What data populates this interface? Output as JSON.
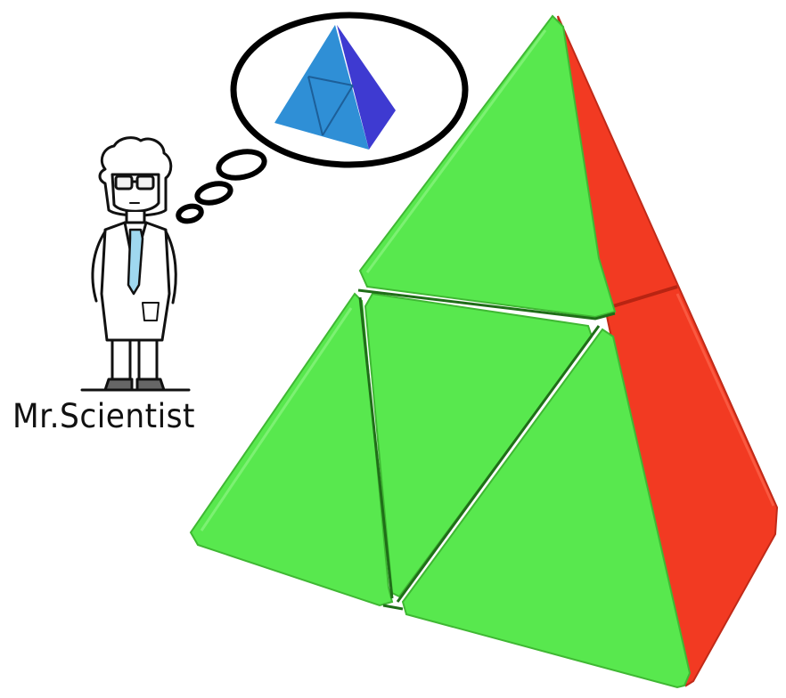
{
  "caption": "Mr.Scientist",
  "icons": {
    "scientist": "scientist-character-icon",
    "thought_bubble": "thought-bubble-icon",
    "small_pyramid": "blue-pyraminx-icon",
    "big_pyramid": "pyraminx-puzzle-icon"
  },
  "colors": {
    "pyramid_green": "#58e84e",
    "pyramid_red": "#f23a22",
    "small_pyramid_blue": "#2f8fd6",
    "small_pyramid_purple": "#3e3ad1",
    "coat": "#ffffff",
    "tie": "#9fd8ef",
    "outline": "#111111"
  }
}
